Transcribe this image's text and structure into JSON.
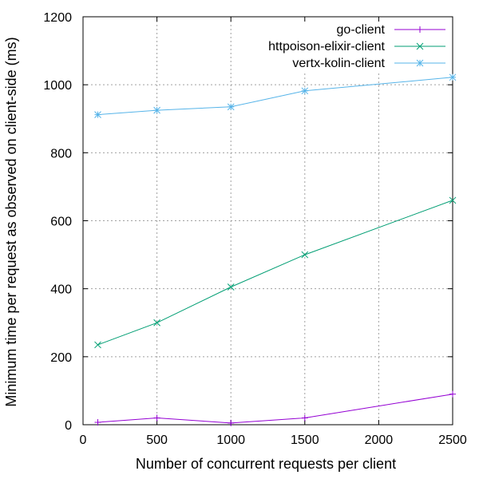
{
  "chart_data": {
    "type": "line",
    "title": "",
    "xlabel": "Number of concurrent requests per client",
    "ylabel": "Minimum time per request as observed on client-side (ms)",
    "xlim": [
      0,
      2500
    ],
    "ylim": [
      0,
      1200
    ],
    "xticks": [
      "0",
      "500",
      "1000",
      "1500",
      "2000",
      "2500"
    ],
    "yticks": [
      "0",
      "200",
      "400",
      "600",
      "800",
      "1000",
      "1200"
    ],
    "grid": true,
    "legend_position": "top-right",
    "series": [
      {
        "name": "go-client",
        "color": "#9400d3",
        "marker": "plus",
        "x": [
          100,
          500,
          1000,
          1500,
          2500
        ],
        "y": [
          7,
          20,
          5,
          20,
          90
        ]
      },
      {
        "name": "httpoison-elixir-client",
        "color": "#009e73",
        "marker": "cross",
        "x": [
          100,
          500,
          1000,
          1500,
          2500
        ],
        "y": [
          235,
          300,
          405,
          500,
          660
        ]
      },
      {
        "name": "vertx-kolin-client",
        "color": "#56b4e9",
        "marker": "star",
        "x": [
          100,
          500,
          1000,
          1500,
          2500
        ],
        "y": [
          912,
          925,
          935,
          982,
          1022
        ]
      }
    ]
  }
}
